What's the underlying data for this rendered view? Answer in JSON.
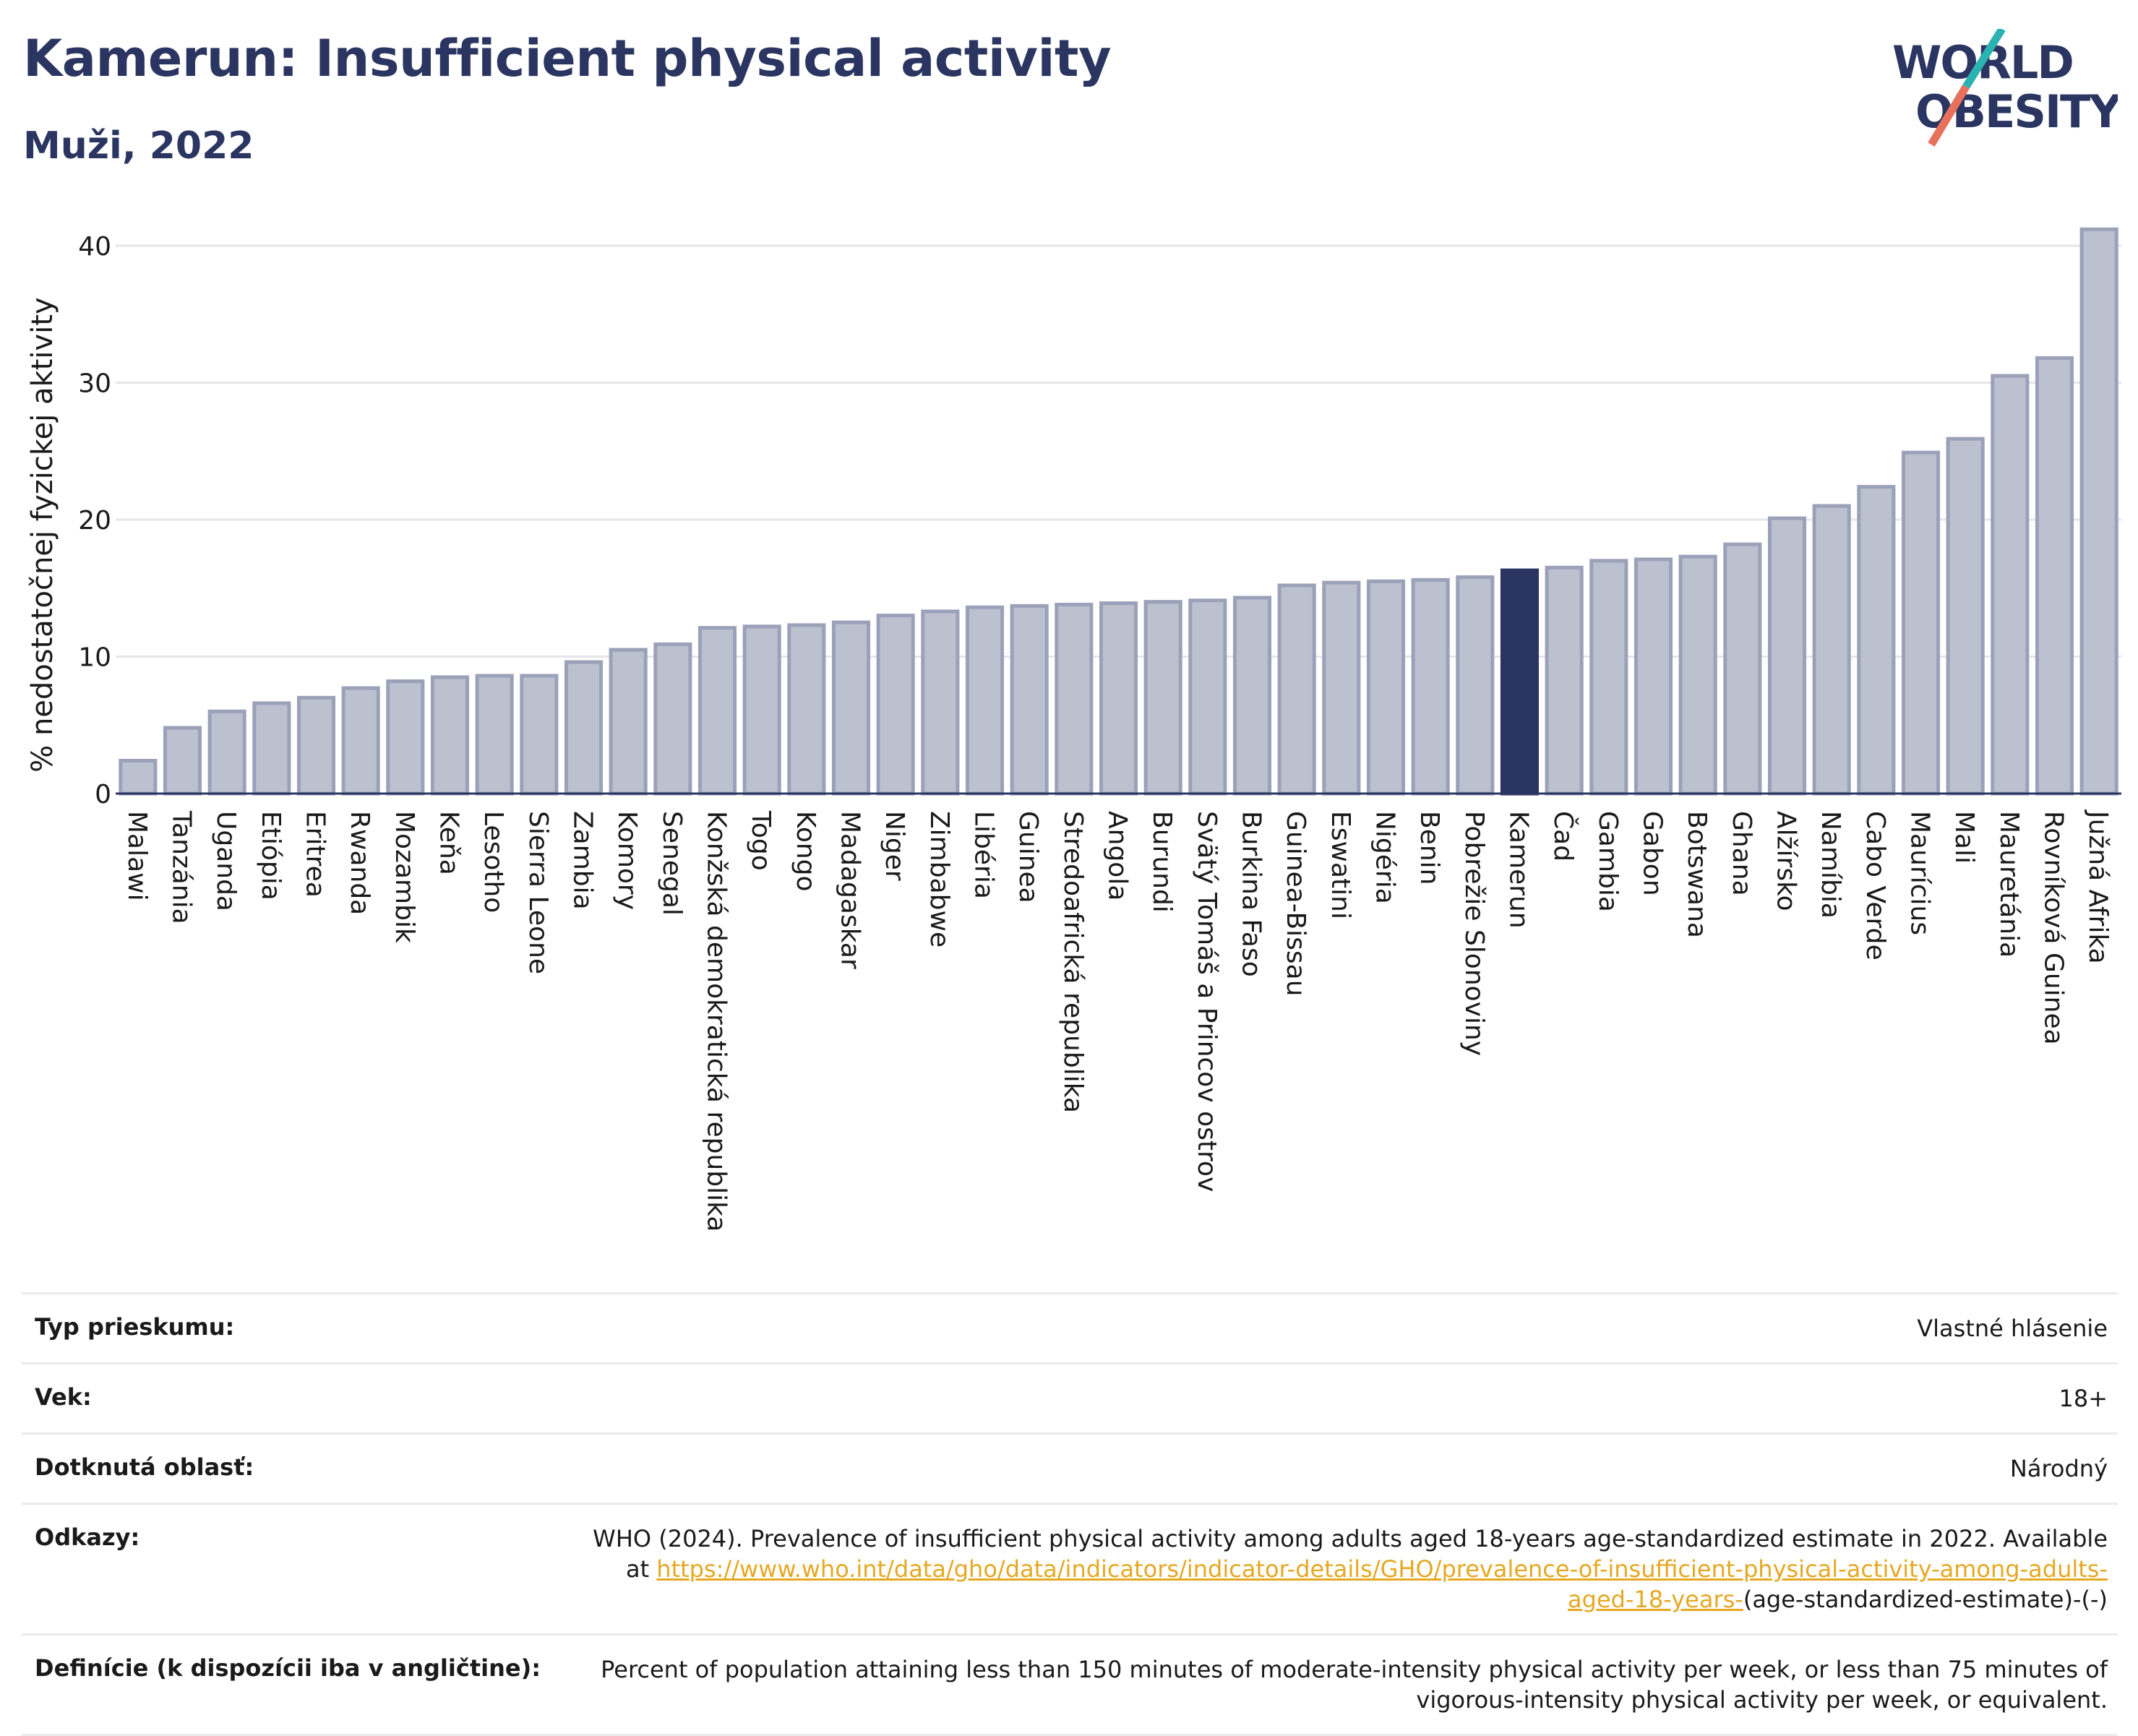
{
  "header": {
    "title": "Kamerun: Insufficient physical activity",
    "subtitle": "Muži, 2022"
  },
  "logo": {
    "line1": "WORLD",
    "line2": "OBESITY",
    "colors": {
      "text": "#2b3561",
      "slash_top": "#2bb3b1",
      "slash_bottom": "#e8715c"
    }
  },
  "colors": {
    "bar_fill": "#bcc1d0",
    "bar_stroke": "#9aa1b8",
    "highlight": "#2b3561",
    "grid": "#e6e6ea"
  },
  "chart_data": {
    "type": "bar",
    "title": "Kamerun: Insufficient physical activity",
    "subtitle": "Muži, 2022",
    "ylabel": "% nedostatočnej fyzickej aktivity",
    "ylim": [
      0,
      42
    ],
    "yticks": [
      0,
      10,
      20,
      30,
      40
    ],
    "grid": true,
    "highlight": "Kamerun",
    "categories": [
      "Malawi",
      "Tanzánia",
      "Uganda",
      "Etiópia",
      "Eritrea",
      "Rwanda",
      "Mozambik",
      "Keňa",
      "Lesotho",
      "Sierra Leone",
      "Zambia",
      "Komory",
      "Senegal",
      "Konžská demokratická republika",
      "Togo",
      "Kongo",
      "Madagaskar",
      "Niger",
      "Zimbabwe",
      "Libéria",
      "Guinea",
      "Stredoafrická republika",
      "Angola",
      "Burundi",
      "Svätý Tomáš a Princov ostrov",
      "Burkina Faso",
      "Guinea-Bissau",
      "Eswatini",
      "Nigéria",
      "Benin",
      "Pobrežie Slonoviny",
      "Kamerun",
      "Čad",
      "Gambia",
      "Gabon",
      "Botswana",
      "Ghana",
      "Alžírsko",
      "Namíbia",
      "Cabo Verde",
      "Maurícius",
      "Mali",
      "Mauretánia",
      "Rovníková Guinea",
      "Južná Afrika"
    ],
    "values": [
      2.4,
      4.8,
      6.0,
      6.6,
      7.0,
      7.7,
      8.2,
      8.5,
      8.6,
      8.6,
      9.6,
      10.5,
      10.9,
      12.1,
      12.2,
      12.3,
      12.5,
      13.0,
      13.3,
      13.6,
      13.7,
      13.8,
      13.9,
      14.0,
      14.1,
      14.3,
      15.2,
      15.4,
      15.5,
      15.6,
      15.8,
      16.3,
      16.5,
      17.0,
      17.1,
      17.3,
      18.2,
      20.1,
      21.0,
      22.4,
      24.9,
      25.9,
      30.5,
      31.8,
      41.2
    ]
  },
  "meta": {
    "rows": [
      {
        "key": "Typ prieskumu:",
        "value": "Vlastné hlásenie"
      },
      {
        "key": "Vek:",
        "value": "18+"
      },
      {
        "key": "Dotknutá oblasť:",
        "value": "Národný"
      }
    ],
    "references": {
      "key": "Odkazy:",
      "text": "WHO (2024). Prevalence of insufficient physical activity among adults aged 18-years age-standardized estimate in 2022. Available at",
      "link": "https://www.who.int/data/gho/data/indicators/indicator-details/GHO/prevalence-of-insufficient-physical-activity-among-adults-aged-18-years-",
      "suffix": "(age-standardized-estimate)-(-)"
    },
    "definition": {
      "key": "Definície (k dispozícii iba v angličtine):",
      "value": "Percent of population attaining less than 150 minutes of moderate-intensity physical activity per week, or less than 75 minutes of vigorous-intensity physical activity per week, or equivalent."
    }
  }
}
